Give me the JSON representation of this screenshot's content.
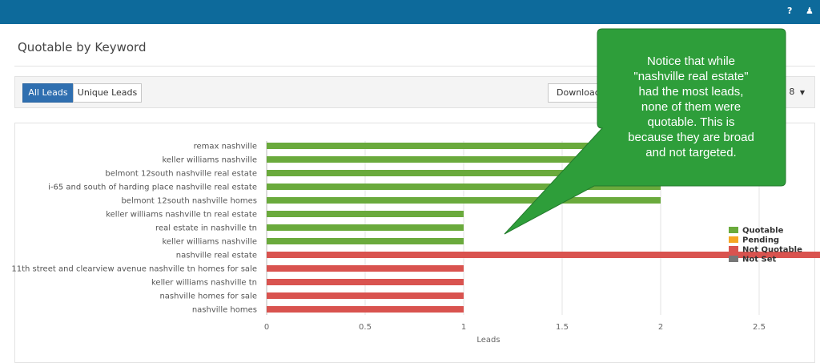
{
  "topbar": {
    "help_icon": "?",
    "user_icon": "♟"
  },
  "page": {
    "title": "Quotable by Keyword"
  },
  "toolbar": {
    "all_leads_label": "All Leads",
    "unique_leads_label": "Unique Leads",
    "download_label": "Download",
    "date_fragment": "8"
  },
  "callout": {
    "lines": [
      "Notice that while",
      "\"nashville real estate\"",
      "had the most leads,",
      "none of them were",
      "quotable. This is",
      "because they are broad",
      "and not targeted."
    ],
    "color": "#2e9e3a"
  },
  "chart_data": {
    "type": "bar",
    "orientation": "horizontal",
    "categories": [
      "remax nashville",
      "keller williams nashville",
      "belmont 12south nashville real estate",
      "i-65 and south of harding place nashville real estate",
      "belmont 12south nashville homes",
      "keller williams nashville tn real estate",
      "real estate in nashville tn",
      "keller williams nashville",
      "nashville real estate",
      "11th street and clearview avenue nashville tn homes for sale",
      "keller williams nashville tn",
      "nashville homes for sale",
      "nashville homes"
    ],
    "values": [
      2,
      2,
      2,
      2,
      2,
      1,
      1,
      1,
      4,
      1,
      1,
      1,
      1
    ],
    "status": [
      "Quotable",
      "Quotable",
      "Quotable",
      "Quotable",
      "Quotable",
      "Quotable",
      "Quotable",
      "Quotable",
      "Not Quotable",
      "Not Quotable",
      "Not Quotable",
      "Not Quotable",
      "Not Quotable"
    ],
    "xlabel": "Leads",
    "xlim": [
      0,
      4.5
    ],
    "xticks": [
      "0",
      "0.5",
      "1",
      "1.5",
      "2",
      "2.5",
      "3",
      "3.5",
      "4",
      "4.5"
    ],
    "grid": true,
    "legend_position": "right",
    "legend": [
      {
        "name": "Quotable",
        "color": "#6aaa3c"
      },
      {
        "name": "Pending",
        "color": "#f5a623"
      },
      {
        "name": "Not Quotable",
        "color": "#d9534f"
      },
      {
        "name": "Not Set",
        "color": "#777777"
      }
    ]
  }
}
